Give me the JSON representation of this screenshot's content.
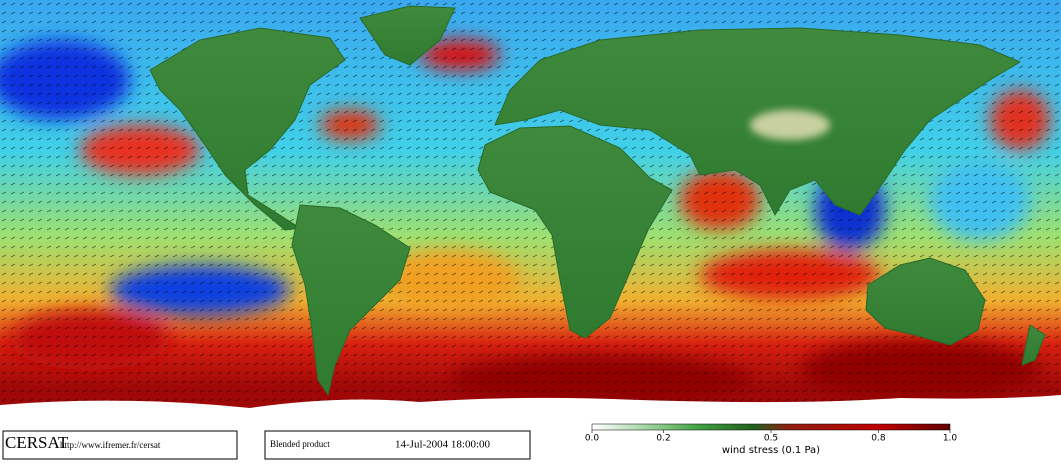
{
  "logo": "CERSAT",
  "url": "http://www.ifremer.fr/cersat",
  "product": "Blended product",
  "datetime": "14-Jul-2004 18:00:00",
  "colorbar": {
    "range": [
      0,
      1
    ],
    "ticks": [
      {
        "value": 0,
        "label": "0.0"
      },
      0.2,
      0.5,
      0.8,
      {
        "value": 1,
        "label": "1.0"
      }
    ],
    "label": "wind stress (0.1 Pa)"
  }
}
